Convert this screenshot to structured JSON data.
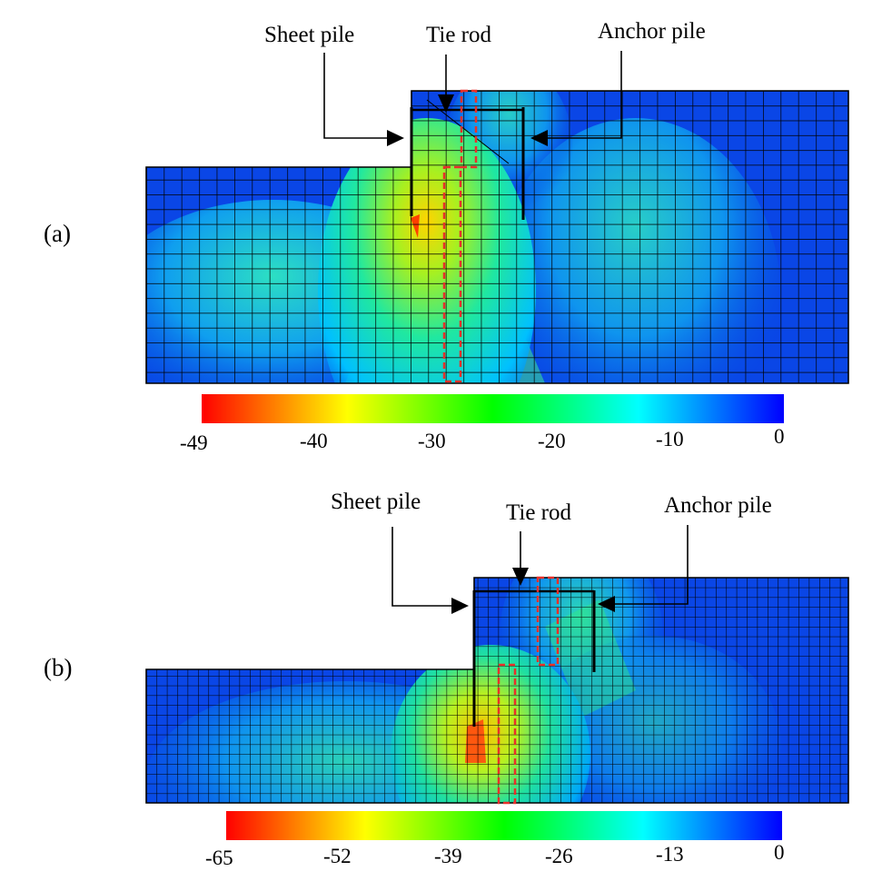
{
  "panels": [
    {
      "label": "(a)",
      "callouts": {
        "sheet_pile": "Sheet pile",
        "tie_rod": "Tie rod",
        "anchor_pile": "Anchor pile"
      },
      "colorbar": {
        "min": -49,
        "max": 0,
        "ticks": [
          "-49",
          "-40",
          "-30",
          "-20",
          "-10",
          "0"
        ]
      }
    },
    {
      "label": "(b)",
      "callouts": {
        "sheet_pile": "Sheet pile",
        "tie_rod": "Tie rod",
        "anchor_pile": "Anchor pile"
      },
      "colorbar": {
        "min": -65,
        "max": 0,
        "ticks": [
          "-65",
          "-52",
          "-39",
          "-26",
          "-13",
          "0"
        ]
      }
    }
  ],
  "colormap": [
    "#ff0000",
    "#ffff00",
    "#00ff00",
    "#00ffff",
    "#0000ff"
  ],
  "colors": {
    "highlight_box": "#e8302a",
    "mesh_line": "#000000"
  }
}
